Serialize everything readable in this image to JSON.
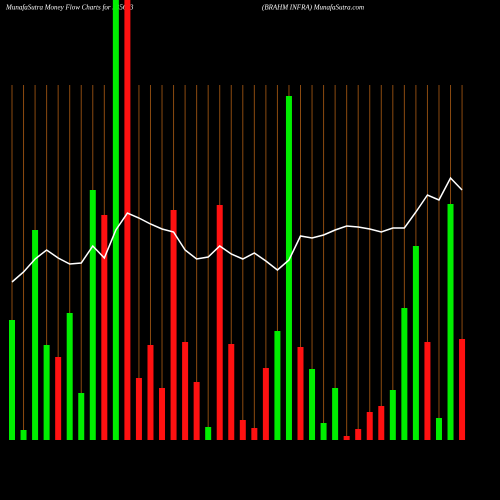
{
  "chart_data": {
    "type": "bar",
    "title": "MunafaSutra  Money Flow  Charts for 535693",
    "subtitle": "(BRAHM INFRA) MunafaSutra.com",
    "categories": [
      null,
      null,
      null,
      null,
      null,
      null,
      null,
      null,
      null,
      null,
      null,
      null,
      null,
      null,
      null,
      null,
      null,
      null,
      null,
      null,
      null,
      null,
      null,
      null,
      null,
      null,
      null,
      null,
      null,
      null,
      null,
      null,
      null,
      null,
      null,
      null,
      null,
      null,
      null,
      null
    ],
    "values": [
      120,
      10,
      210,
      95,
      83,
      127,
      47,
      250,
      225,
      440,
      440,
      62,
      95,
      52,
      230,
      98,
      58,
      13,
      235,
      96,
      20,
      12,
      72,
      109,
      344,
      93,
      71,
      17,
      52,
      4,
      11,
      28,
      34,
      50,
      132,
      194,
      98,
      22,
      236,
      101
    ],
    "colors": [
      "#00ee00",
      "#00ee00",
      "#00ee00",
      "#00ee00",
      "#ff1111",
      "#00ee00",
      "#00ee00",
      "#00ee00",
      "#ff1111",
      "#00ee00",
      "#ff1111",
      "#ff1111",
      "#ff1111",
      "#ff1111",
      "#ff1111",
      "#ff1111",
      "#ff1111",
      "#00ee00",
      "#ff1111",
      "#ff1111",
      "#ff1111",
      "#ff1111",
      "#ff1111",
      "#00ee00",
      "#00ee00",
      "#ff1111",
      "#00ee00",
      "#00ee00",
      "#00ee00",
      "#ff1111",
      "#ff1111",
      "#ff1111",
      "#ff1111",
      "#00ee00",
      "#00ee00",
      "#00ee00",
      "#ff1111",
      "#00ee00",
      "#00ee00",
      "#ff1111"
    ],
    "line_values": [
      158,
      168,
      181,
      190,
      182,
      176,
      177,
      194,
      182,
      210,
      227,
      222,
      216,
      211,
      208,
      190,
      181,
      183,
      194,
      186,
      181,
      187,
      179,
      170,
      180,
      204,
      202,
      205,
      210,
      214,
      213,
      211,
      208,
      212,
      212,
      228,
      245,
      240,
      262,
      250
    ],
    "line_color": "#ffffff",
    "grid_color": "#8b4a10",
    "ylim": [
      0,
      440
    ]
  }
}
